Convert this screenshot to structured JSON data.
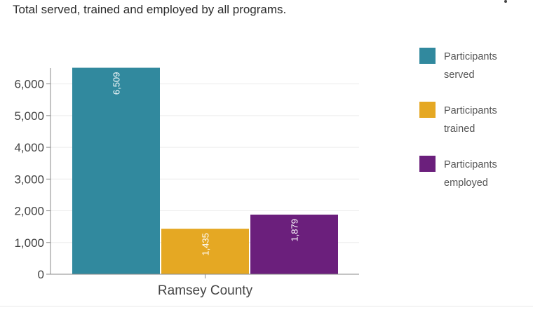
{
  "subtitle": "Total served, trained and employed by all programs.",
  "menu_icon": "more-vertical-icon",
  "chart_data": {
    "type": "bar",
    "categories": [
      "Ramsey County"
    ],
    "series": [
      {
        "name": "Participants served",
        "values": [
          6509
        ],
        "label": "6,509",
        "color": "#31899e"
      },
      {
        "name": "Participants trained",
        "values": [
          1435
        ],
        "label": "1,435",
        "color": "#e5a823"
      },
      {
        "name": "Participants employed",
        "values": [
          1879
        ],
        "label": "1,879",
        "color": "#6b1f7c"
      }
    ],
    "yticks": [
      0,
      1000,
      2000,
      3000,
      4000,
      5000,
      6000
    ],
    "ytick_labels": [
      "0",
      "1,000",
      "2,000",
      "3,000",
      "4,000",
      "5,000",
      "6,000"
    ],
    "ylim": [
      0,
      6500
    ],
    "grid": true,
    "legend_position": "right",
    "title": "",
    "xlabel": "",
    "ylabel": ""
  }
}
